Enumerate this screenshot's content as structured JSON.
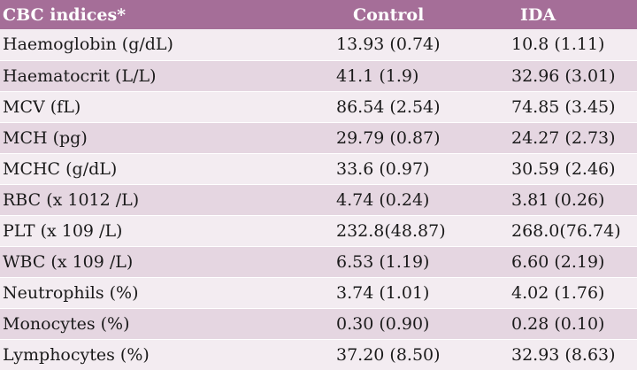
{
  "table": {
    "headers": {
      "indices": "CBC indices*",
      "control": "Control",
      "ida": "IDA"
    },
    "rows": [
      {
        "label": "Haemoglobin (g/dL)",
        "control": "13.93 (0.74)",
        "ida": "10.8 (1.11)"
      },
      {
        "label": "Haematocrit (L/L)",
        "control": "41.1 (1.9)",
        "ida": "32.96 (3.01)"
      },
      {
        "label": "MCV (fL)",
        "control": "86.54 (2.54)",
        "ida": "74.85 (3.45)"
      },
      {
        "label": "MCH (pg)",
        "control": "29.79 (0.87)",
        "ida": "24.27 (2.73)"
      },
      {
        "label": "MCHC (g/dL)",
        "control": "33.6 (0.97)",
        "ida": "30.59 (2.46)"
      },
      {
        "label": "RBC (x 1012 /L)",
        "control": "4.74 (0.24)",
        "ida": "3.81 (0.26)"
      },
      {
        "label": "PLT (x 109 /L)",
        "control": "232.8(48.87)",
        "ida": "268.0(76.74)"
      },
      {
        "label": "WBC (x 109 /L)",
        "control": "6.53 (1.19)",
        "ida": "6.60 (2.19)"
      },
      {
        "label": "Neutrophils (%)",
        "control": "3.74 (1.01)",
        "ida": "4.02 (1.76)"
      },
      {
        "label": "Monocytes (%)",
        "control": "0.30 (0.90)",
        "ida": "0.28 (0.10)"
      },
      {
        "label": "Lymphocytes (%)",
        "control": "37.20 (8.50)",
        "ida": "32.93 (8.63)"
      }
    ]
  },
  "colors": {
    "header_bg": "#a56e98",
    "row_light": "#f3ecf1",
    "row_dark": "#e5d6e1"
  }
}
